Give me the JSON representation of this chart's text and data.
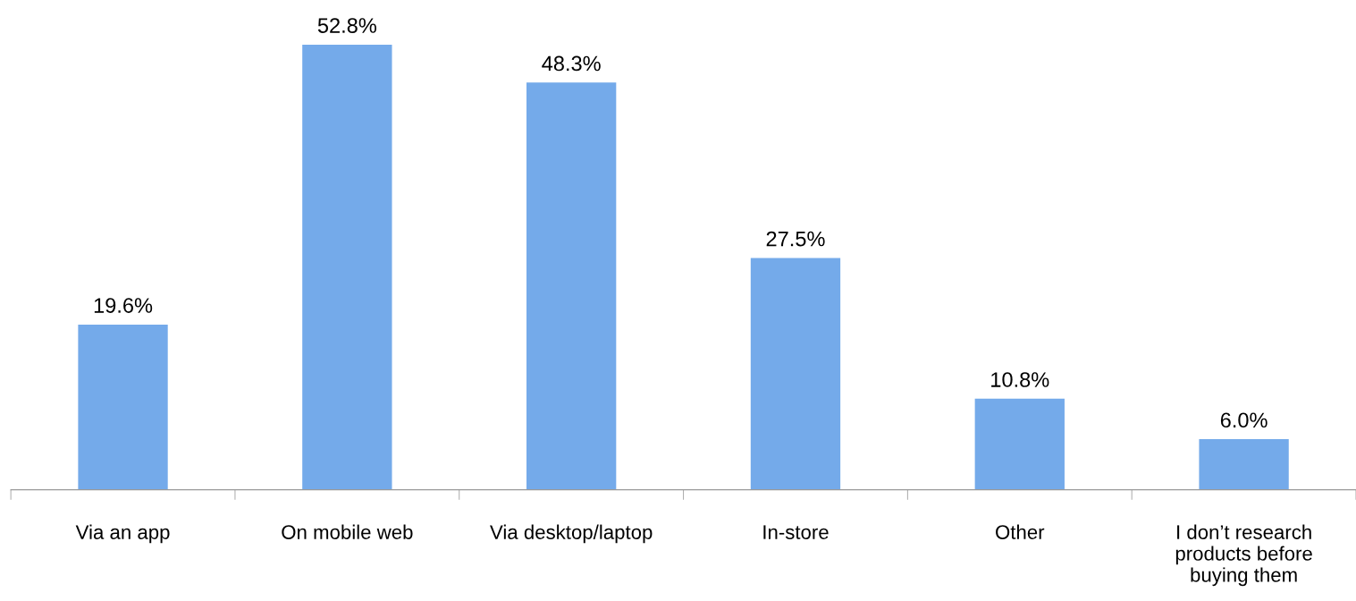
{
  "chart_data": {
    "type": "bar",
    "categories": [
      "Via an app",
      "On mobile web",
      "Via desktop/laptop",
      "In-store",
      "Other",
      "I don’t research\nproducts before\nbuying them"
    ],
    "values": [
      19.6,
      52.8,
      48.3,
      27.5,
      10.8,
      6.0
    ],
    "value_labels": [
      "19.6%",
      "52.8%",
      "48.3%",
      "27.5%",
      "10.8%",
      "6.0%"
    ],
    "color": "#74aaea",
    "grid": false,
    "legend": false
  }
}
